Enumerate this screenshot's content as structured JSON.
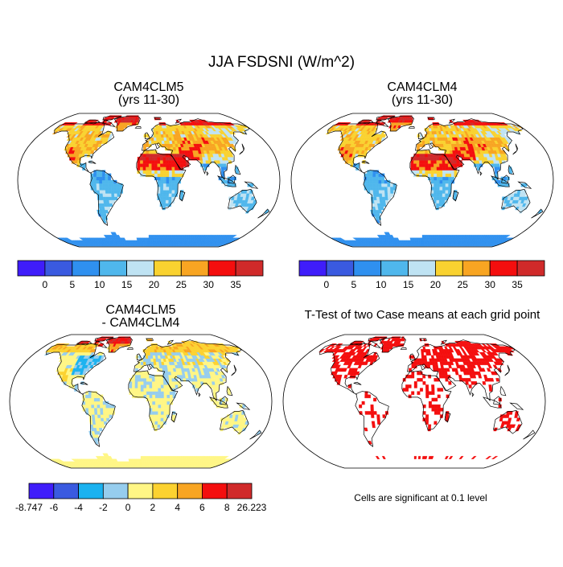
{
  "title": "JJA FSDSNI (W/m^2)",
  "panels": [
    {
      "id": "p1",
      "title_line1": "CAM4CLM5",
      "title_line2": "(yrs 11-30)",
      "kind": "absolute"
    },
    {
      "id": "p2",
      "title_line1": "CAM4CLM4",
      "title_line2": "(yrs 11-30)",
      "kind": "absolute"
    },
    {
      "id": "p3",
      "title_line1": "CAM4CLM5",
      "title_line2": "- CAM4CLM4",
      "kind": "difference"
    },
    {
      "id": "p4",
      "title_line1": "T-Test of two Case means at each grid point",
      "title_line2": "",
      "kind": "significance"
    }
  ],
  "colorbars": {
    "absolute": {
      "colors": [
        "#3f1dfa",
        "#3a5ae0",
        "#2f90ef",
        "#4fb7ec",
        "#bfe3f3",
        "#f9d230",
        "#f8a522",
        "#f40e0e",
        "#d02a2a"
      ],
      "labels": [
        "0",
        "5",
        "10",
        "15",
        "20",
        "25",
        "30",
        "35"
      ]
    },
    "difference": {
      "colors": [
        "#3f1dfa",
        "#3a5ae0",
        "#1bb2f0",
        "#96cdee",
        "#fff685",
        "#fcd230",
        "#f8a522",
        "#f40e0e",
        "#d02a2a"
      ],
      "labels": [
        "-8.747",
        "-6",
        "-4",
        "-2",
        "0",
        "2",
        "4",
        "6",
        "8",
        "26.223"
      ]
    }
  },
  "significance_note": "Cells are significant at 0.1 level",
  "map_colors": {
    "ocean": "#ffffff",
    "antarctica_abs": "#3a5ae0",
    "antarctica_diff": "#fff685",
    "significant": "#f40e0e"
  }
}
